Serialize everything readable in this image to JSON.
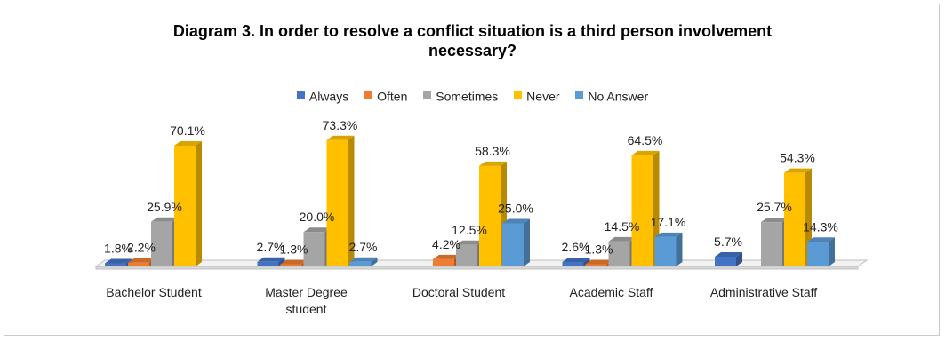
{
  "chart_data": {
    "type": "bar",
    "title_line1": "Diagram 3. In order to resolve a conflict situation is a third person involvement",
    "title_line2": "necessary?",
    "xlabel": "",
    "ylabel": "",
    "ylim": [
      0,
      80
    ],
    "grid": false,
    "legend_position": "top",
    "categories": [
      [
        "Bachelor Student"
      ],
      [
        "Master Degree",
        "student"
      ],
      [
        "Doctoral Student"
      ],
      [
        "Academic Staff"
      ],
      [
        "Administrative Staff"
      ]
    ],
    "series": [
      {
        "name": "Always",
        "color": "#4472C4",
        "values": [
          1.8,
          2.7,
          null,
          2.6,
          5.7
        ],
        "labels": [
          "1.8%",
          "2.7%",
          "",
          "2.6%",
          "5.7%"
        ]
      },
      {
        "name": "Often",
        "color": "#ED7D31",
        "values": [
          2.2,
          1.3,
          4.2,
          1.3,
          null
        ],
        "labels": [
          "2.2%",
          "1.3%",
          "4.2%",
          "1.3%",
          ""
        ]
      },
      {
        "name": "Sometimes",
        "color": "#A5A5A5",
        "values": [
          25.9,
          20.0,
          12.5,
          14.5,
          25.7
        ],
        "labels": [
          "25.9%",
          "20.0%",
          "12.5%",
          "14.5%",
          "25.7%"
        ]
      },
      {
        "name": "Never",
        "color": "#FFC000",
        "values": [
          70.1,
          73.3,
          58.3,
          64.5,
          54.3
        ],
        "labels": [
          "70.1%",
          "73.3%",
          "58.3%",
          "64.5%",
          "54.3%"
        ]
      },
      {
        "name": "No Answer",
        "color": "#5B9BD5",
        "values": [
          null,
          2.7,
          25.0,
          17.1,
          14.3
        ],
        "labels": [
          "",
          "2.7%",
          "25.0%",
          "17.1%",
          "14.3%"
        ]
      }
    ]
  }
}
